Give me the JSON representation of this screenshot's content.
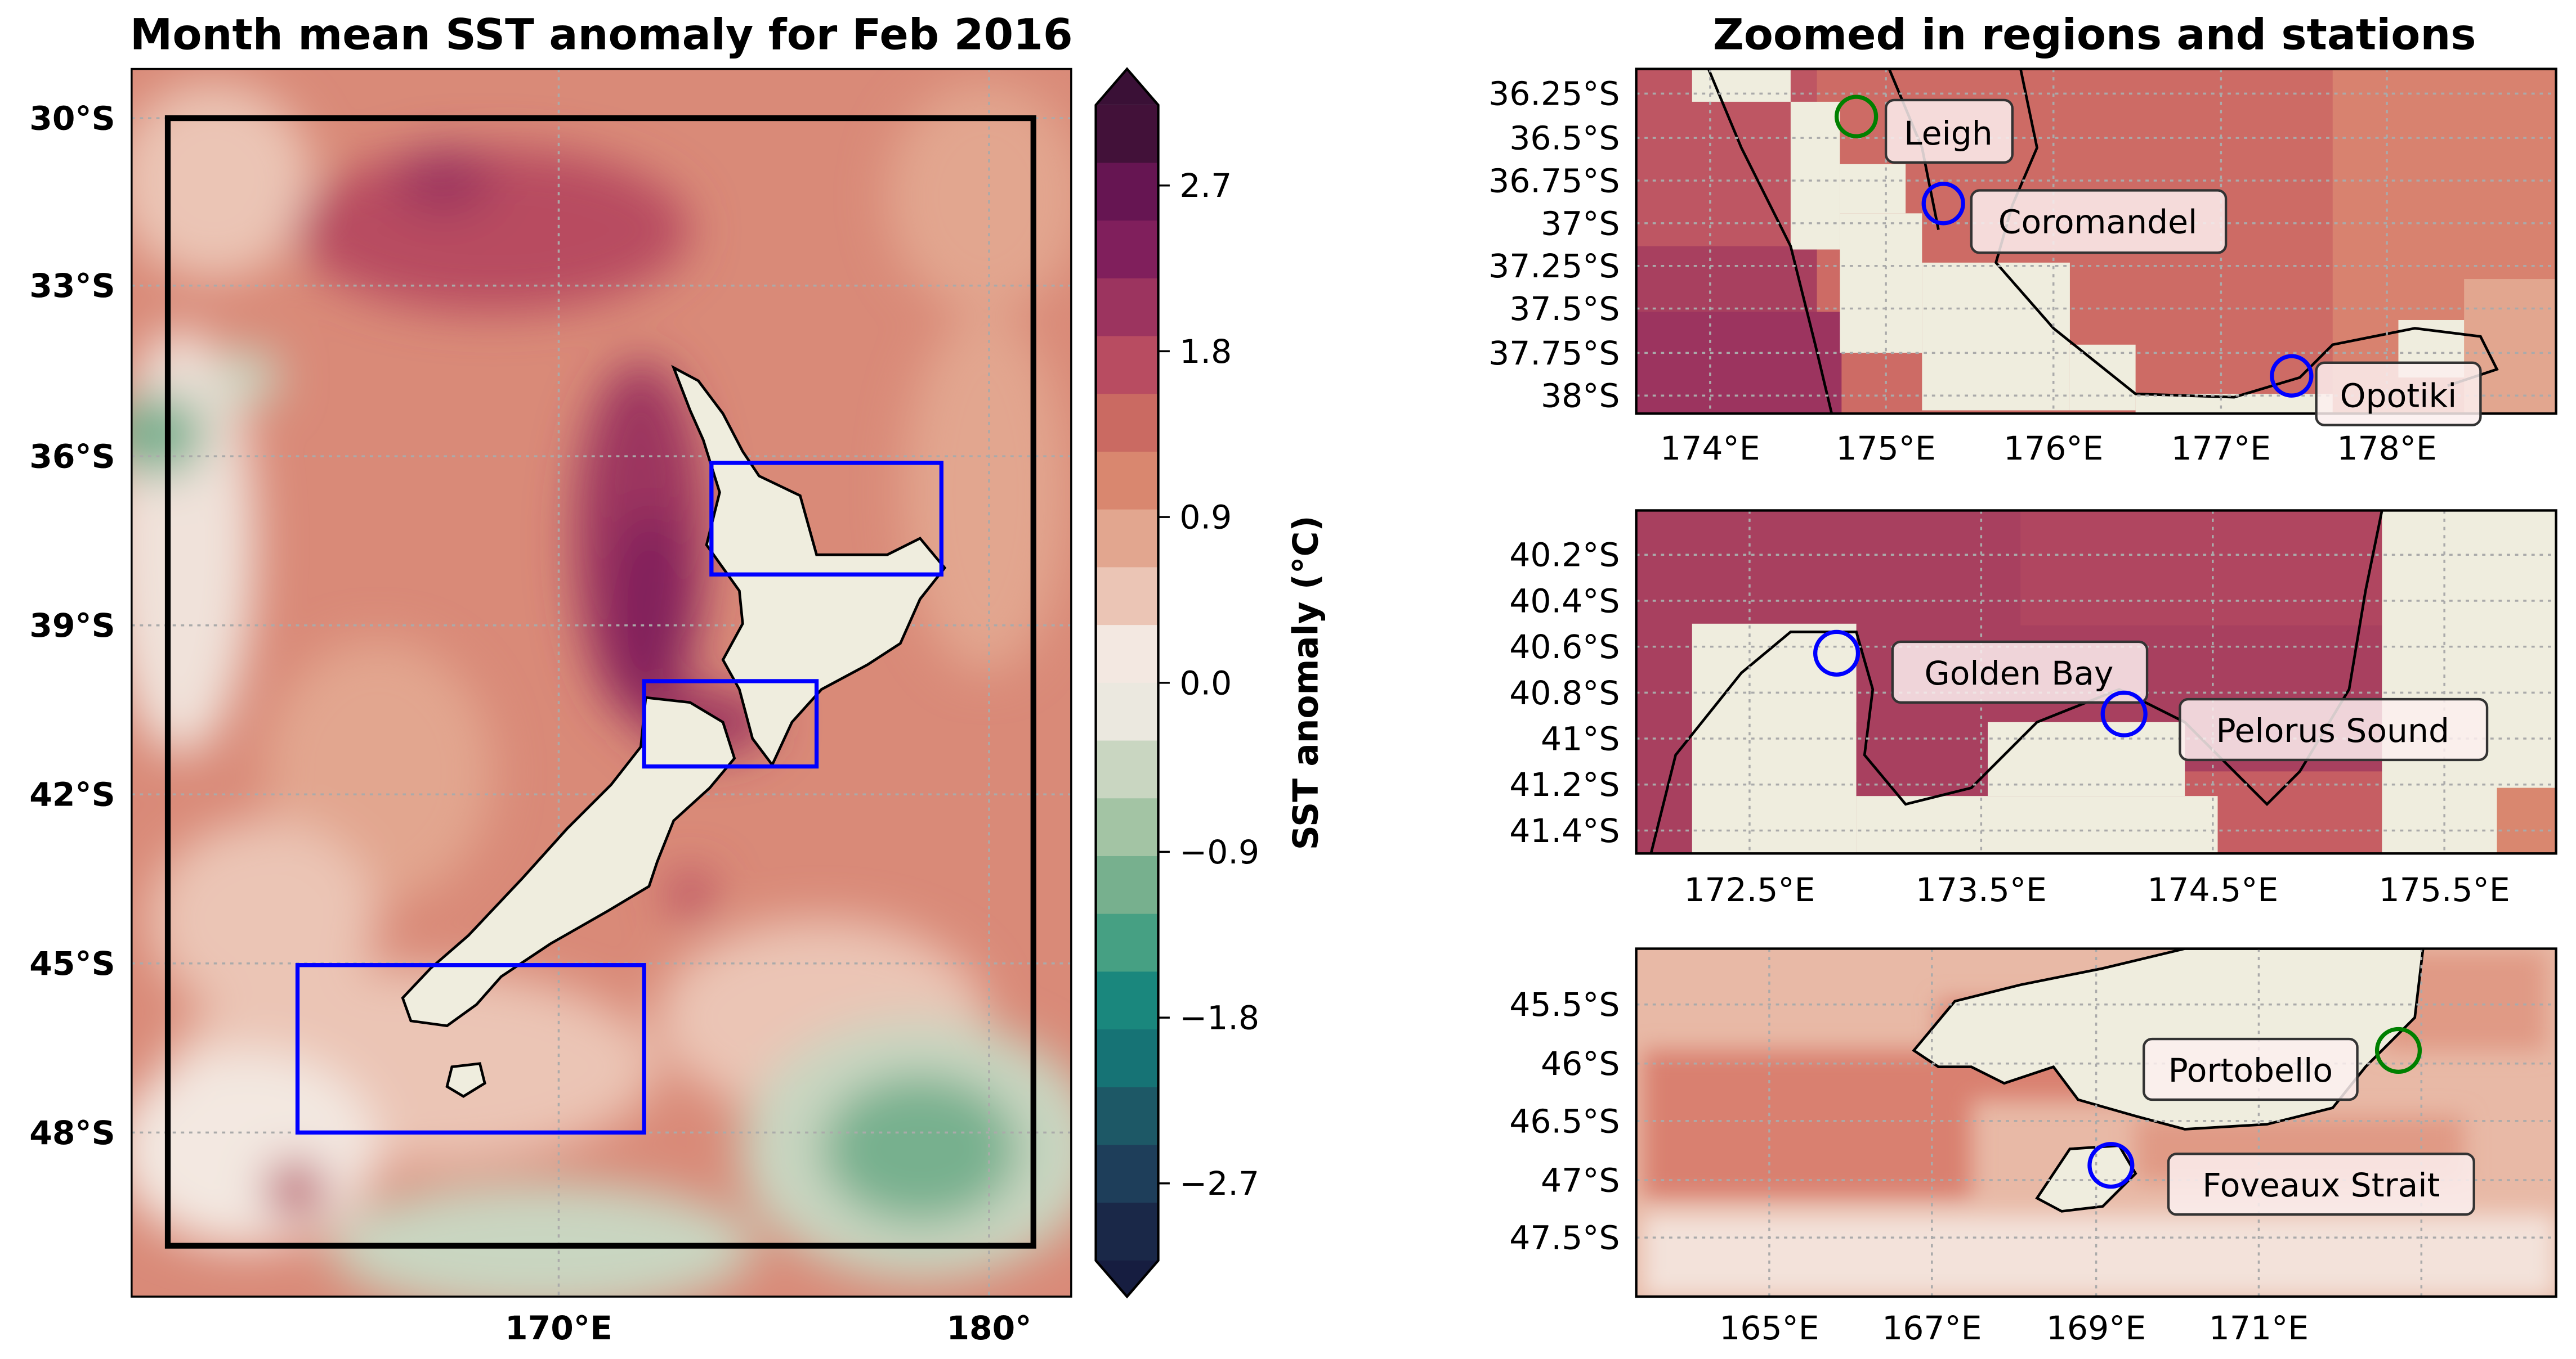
{
  "left_map": {
    "title": "Month mean SST anomaly for Feb 2016",
    "lat_labels": [
      "30°S",
      "33°S",
      "36°S",
      "39°S",
      "42°S",
      "45°S",
      "48°S"
    ],
    "lon_labels": [
      "170°E",
      "180°"
    ],
    "box_colors": {
      "domain": "#000000",
      "regions": "#0000ff"
    }
  },
  "colorbar": {
    "label": "SST anomaly (°C)",
    "ticks": [
      "2.7",
      "1.8",
      "0.9",
      "0.0",
      "−0.9",
      "−1.8",
      "−2.7"
    ],
    "colors": [
      "#3a1036",
      "#421139",
      "#661552",
      "#801f5c",
      "#9c345f",
      "#b84c61",
      "#ca6a62",
      "#d9876f",
      "#e2a68f",
      "#ebc5b5",
      "#f3e8e1",
      "#ebe8df",
      "#c9d6c1",
      "#a3c4a4",
      "#77b08e",
      "#46a083",
      "#1a877d",
      "#167375",
      "#1d5866",
      "#1e3e5a",
      "#1a2848",
      "#161d40"
    ],
    "extend": "both"
  },
  "right": {
    "title": "Zoomed in regions and stations",
    "panels": [
      {
        "lat_labels": [
          "36.25°S",
          "36.5°S",
          "36.75°S",
          "37°S",
          "37.25°S",
          "37.5°S",
          "37.75°S",
          "38°S"
        ],
        "lon_labels": [
          "174°E",
          "175°E",
          "176°E",
          "177°E",
          "178°E"
        ],
        "stations": [
          {
            "name": "Leigh",
            "color": "#008000"
          },
          {
            "name": "Coromandel",
            "color": "#0000ff"
          },
          {
            "name": "Opotiki",
            "color": "#0000ff"
          }
        ]
      },
      {
        "lat_labels": [
          "40.2°S",
          "40.4°S",
          "40.6°S",
          "40.8°S",
          "41°S",
          "41.2°S",
          "41.4°S"
        ],
        "lon_labels": [
          "172.5°E",
          "173.5°E",
          "174.5°E",
          "175.5°E"
        ],
        "stations": [
          {
            "name": "Golden Bay",
            "color": "#0000ff"
          },
          {
            "name": "Pelorus Sound",
            "color": "#0000ff"
          }
        ]
      },
      {
        "lat_labels": [
          "45.5°S",
          "46°S",
          "46.5°S",
          "47°S",
          "47.5°S"
        ],
        "lon_labels": [
          "165°E",
          "167°E",
          "169°E",
          "171°E"
        ],
        "stations": [
          {
            "name": "Portobello",
            "color": "#008000"
          },
          {
            "name": "Foveaux Strait",
            "color": "#0000ff"
          }
        ]
      }
    ]
  },
  "colors": {
    "land": "#efedde",
    "ocean_base": "#d98a78"
  }
}
